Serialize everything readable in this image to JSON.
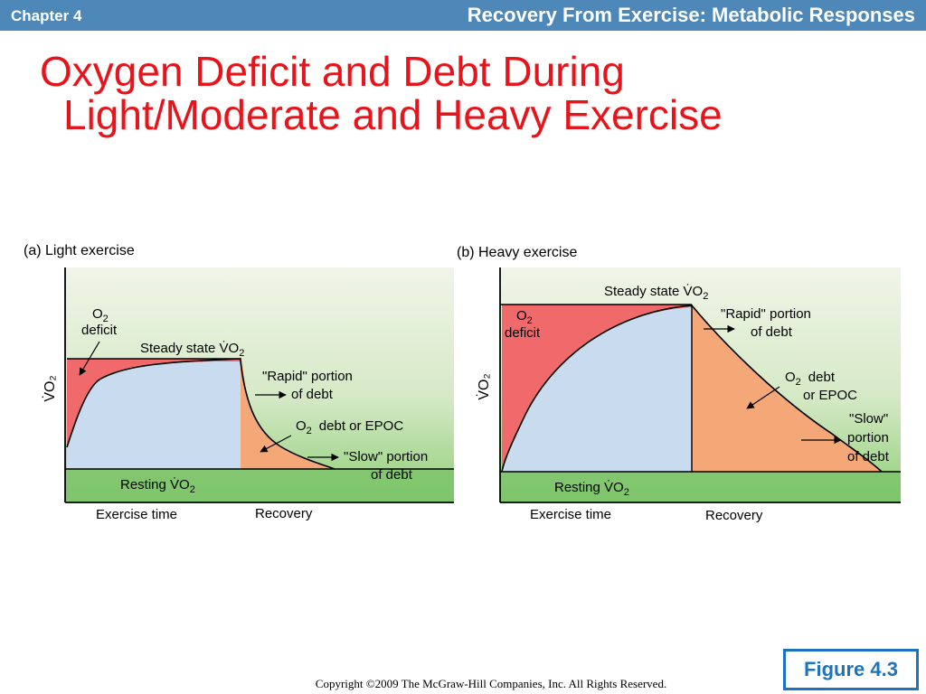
{
  "header": {
    "chapter": "Chapter 4",
    "section_title": "Recovery From Exercise: Metabolic Responses"
  },
  "slide": {
    "title_line1": "Oxygen Deficit and Debt During",
    "title_line2": "Light/Moderate and Heavy Exercise"
  },
  "figure_label": "Figure 4.3",
  "copyright": "Copyright ©2009 The McGraw-Hill Companies, Inc. All Rights Reserved.",
  "colors": {
    "header_bar": "#4d88b8",
    "title": "#e8141b",
    "deficit": "#f0696b",
    "steady": "#c9dcef",
    "debt": "#f5a877",
    "green_bg_top": "#eef3e2",
    "green_bg_bottom": "#7cc46a",
    "badge": "#1e73be"
  },
  "panel_a": {
    "caption": "(a) Light exercise",
    "y_axis": "V̇O₂",
    "o2_deficit_line1": "O",
    "o2_deficit_sub": "2",
    "o2_deficit_line2": "deficit",
    "steady_state_pre": "Steady state V̇O",
    "steady_state_sub": "2",
    "rapid_line1": "\"Rapid\" portion",
    "rapid_line2": "of debt",
    "debt_pre": "O",
    "debt_sub": "2",
    "debt_post": "debt or EPOC",
    "slow_line1": "\"Slow\" portion",
    "slow_line2": "of debt",
    "resting_pre": "Resting V̇O",
    "resting_sub": "2",
    "exercise_time": "Exercise time",
    "recovery": "Recovery"
  },
  "panel_b": {
    "caption": "(b) Heavy exercise",
    "y_axis": "V̇O₂",
    "steady_state_pre": "Steady state V̇O",
    "steady_state_sub": "2",
    "o2_deficit_line1": "O",
    "o2_deficit_sub": "2",
    "o2_deficit_line2": "deficit",
    "rapid_line1": "\"Rapid\" portion",
    "rapid_line2": "of debt",
    "debt_pre": "O",
    "debt_sub": "2",
    "debt_post": "debt",
    "debt_line2": "or EPOC",
    "slow_line1": "\"Slow\"",
    "slow_line2": "portion",
    "slow_line3": "of debt",
    "resting_pre": "Resting V̇O",
    "resting_sub": "2",
    "exercise_time": "Exercise time",
    "recovery": "Recovery"
  }
}
